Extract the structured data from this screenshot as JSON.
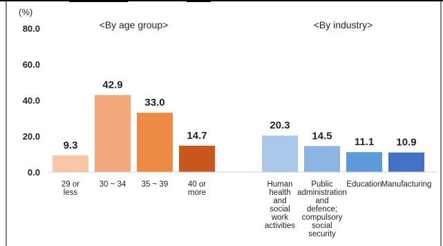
{
  "chart_data": {
    "type": "bar",
    "unit_label": "(%)",
    "ylim": [
      0,
      80
    ],
    "yticks": [
      "80.0",
      "60.0",
      "40.0",
      "20.0",
      "0.0"
    ],
    "ytick_values": [
      80,
      60,
      40,
      20,
      0
    ],
    "grid": false,
    "groups": [
      {
        "title": "<By age group>",
        "categories": [
          [
            "29 or",
            "less"
          ],
          [
            "30 ~ 34"
          ],
          [
            "35 ~ 39"
          ],
          [
            "40 or",
            "more"
          ]
        ],
        "values": [
          9.3,
          42.9,
          33.0,
          14.7
        ],
        "value_labels": [
          "9.3",
          "42.9",
          "33.0",
          "14.7"
        ],
        "colors": [
          "#F9C7A6",
          "#F3A97C",
          "#ED8A45",
          "#C9561C"
        ]
      },
      {
        "title": "<By industry>",
        "categories": [
          [
            "Human",
            "health",
            "and",
            "social",
            "work",
            "activities"
          ],
          [
            "Public",
            "administration",
            "and",
            "defence;",
            "compulsory",
            "social",
            "security"
          ],
          [
            "Education"
          ],
          [
            "Manufacturing"
          ]
        ],
        "values": [
          20.3,
          14.5,
          11.1,
          10.9
        ],
        "value_labels": [
          "20.3",
          "14.5",
          "11.1",
          "10.9"
        ],
        "colors": [
          "#A9C8EA",
          "#8DB5E4",
          "#5E9AD9",
          "#4472C4"
        ]
      }
    ]
  }
}
